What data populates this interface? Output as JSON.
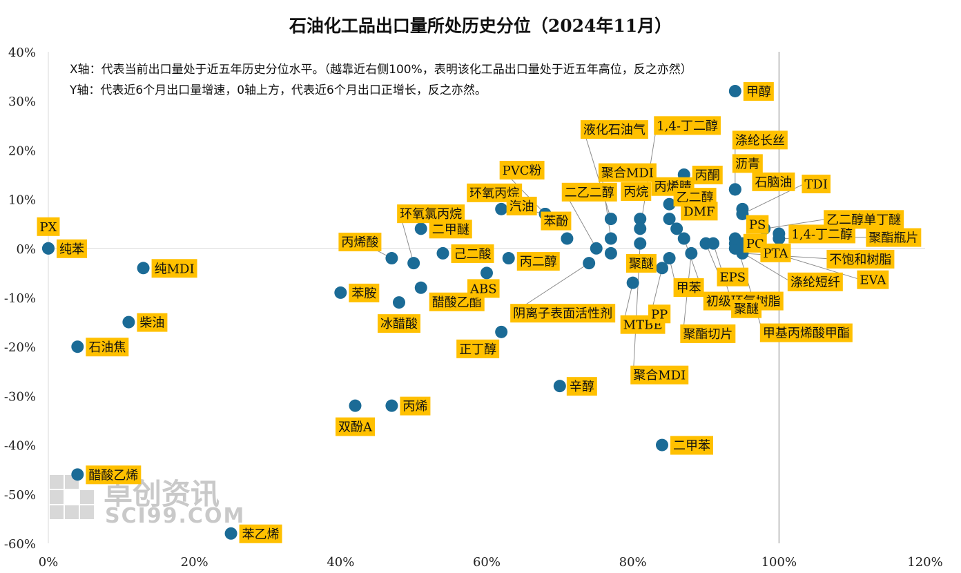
{
  "chart_data": {
    "type": "scatter",
    "title": "石油化工品出口量所处历史分位（2024年11月）",
    "notes": [
      "X轴：代表当前出口量处于近五年历史分位水平。（越靠近右侧100%，表明该化工品出口量处于近五年高位，反之亦然）",
      "Y轴：代表近6个月出口量增速，0轴上方，代表近6个月出口正增长，反之亦然。"
    ],
    "xlim": [
      0,
      120
    ],
    "ylim": [
      -60,
      40
    ],
    "x_ticks": [
      "0%",
      "20%",
      "40%",
      "60%",
      "80%",
      "100%",
      "120%"
    ],
    "y_ticks": [
      "40%",
      "30%",
      "20%",
      "10%",
      "0%",
      "-10%",
      "-20%",
      "-30%",
      "-40%",
      "-50%",
      "-60%"
    ],
    "reference_line_x": 100,
    "point_color": "#1b6b96",
    "label_color": "#ffc000",
    "points": [
      {
        "name": "PX",
        "x": 0,
        "y": 0
      },
      {
        "name": "纯苯",
        "x": 0,
        "y": 0
      },
      {
        "name": "纯MDI",
        "x": 13,
        "y": -4
      },
      {
        "name": "柴油",
        "x": 11,
        "y": -15
      },
      {
        "name": "石油焦",
        "x": 4,
        "y": -20
      },
      {
        "name": "醋酸乙烯",
        "x": 4,
        "y": -46
      },
      {
        "name": "苯乙烯",
        "x": 25,
        "y": -58
      },
      {
        "name": "双酚A",
        "x": 42,
        "y": -32
      },
      {
        "name": "丙烯",
        "x": 47,
        "y": -32
      },
      {
        "name": "苯胺",
        "x": 40,
        "y": -9
      },
      {
        "name": "冰醋酸",
        "x": 48,
        "y": -11
      },
      {
        "name": "丙烯酸",
        "x": 47,
        "y": -2
      },
      {
        "name": "环氧氯丙烷",
        "x": 50,
        "y": -3
      },
      {
        "name": "二甲醚",
        "x": 51,
        "y": 4
      },
      {
        "name": "醋酸乙酯",
        "x": 51,
        "y": -8
      },
      {
        "name": "己二酸",
        "x": 54,
        "y": -1
      },
      {
        "name": "环氧丙烷",
        "x": 62,
        "y": 8
      },
      {
        "name": "ABS",
        "x": 60,
        "y": -5
      },
      {
        "name": "丙二醇",
        "x": 63,
        "y": -2
      },
      {
        "name": "正丁醇",
        "x": 62,
        "y": -17
      },
      {
        "name": "辛醇",
        "x": 70,
        "y": -28
      },
      {
        "name": "二甲苯",
        "x": 84,
        "y": -40
      },
      {
        "name": "PVC粉",
        "x": 68,
        "y": 7
      },
      {
        "name": "汽油",
        "x": 68,
        "y": 7
      },
      {
        "name": "苯酚",
        "x": 71,
        "y": 2
      },
      {
        "name": "二乙二醇",
        "x": 75,
        "y": 0
      },
      {
        "name": "液化石油气",
        "x": 77,
        "y": 6
      },
      {
        "name": "阴离子表面活性剂",
        "x": 74,
        "y": -3
      },
      {
        "name": "聚合MDI",
        "x": 77,
        "y": 2
      },
      {
        "name": "MTBE",
        "x": 80,
        "y": -7
      },
      {
        "name": "聚醚",
        "x": 77,
        "y": -1
      },
      {
        "name": "丙烷",
        "x": 81,
        "y": 6
      },
      {
        "name": "1,4-丁二醇",
        "x": 81,
        "y": 4
      },
      {
        "name": "丙烯腈",
        "x": 85,
        "y": 9
      },
      {
        "name": "丙酮",
        "x": 87,
        "y": 15
      },
      {
        "name": "乙二醇",
        "x": 85,
        "y": 6
      },
      {
        "name": "PP",
        "x": 84,
        "y": -4
      },
      {
        "name": "甲苯",
        "x": 85,
        "y": -2
      },
      {
        "name": "聚合MDI",
        "x": 81,
        "y": 1
      },
      {
        "name": "DMF",
        "x": 86,
        "y": 4
      },
      {
        "name": "聚酯切片",
        "x": 88,
        "y": -1
      },
      {
        "name": "初级环氧树脂",
        "x": 87,
        "y": 2
      },
      {
        "name": "EPS",
        "x": 90,
        "y": 1
      },
      {
        "name": "涤纶长丝",
        "x": 94,
        "y": 12
      },
      {
        "name": "沥青",
        "x": 94,
        "y": 12
      },
      {
        "name": "石脑油",
        "x": 95,
        "y": 8
      },
      {
        "name": "甲醇",
        "x": 94,
        "y": 32
      },
      {
        "name": "TDI",
        "x": 95,
        "y": 7
      },
      {
        "name": "PS",
        "x": 94,
        "y": 1
      },
      {
        "name": "乙二醇单丁醚",
        "x": 98,
        "y": 4
      },
      {
        "name": "PC",
        "x": 94,
        "y": 0
      },
      {
        "name": "1,4-丁二醇",
        "x": 100,
        "y": 3
      },
      {
        "name": "聚酯瓶片",
        "x": 100,
        "y": 2
      },
      {
        "name": "PTA",
        "x": 95,
        "y": 0
      },
      {
        "name": "不饱和树脂",
        "x": 95,
        "y": -1
      },
      {
        "name": "涤纶短纤",
        "x": 94,
        "y": 0
      },
      {
        "name": "EVA",
        "x": 95,
        "y": 1
      },
      {
        "name": "聚醚",
        "x": 91,
        "y": 1
      },
      {
        "name": "甲基丙烯酸甲酯",
        "x": 94,
        "y": 2
      }
    ]
  },
  "watermark": {
    "brand": "卓创资讯",
    "url": "SCI99.COM"
  }
}
